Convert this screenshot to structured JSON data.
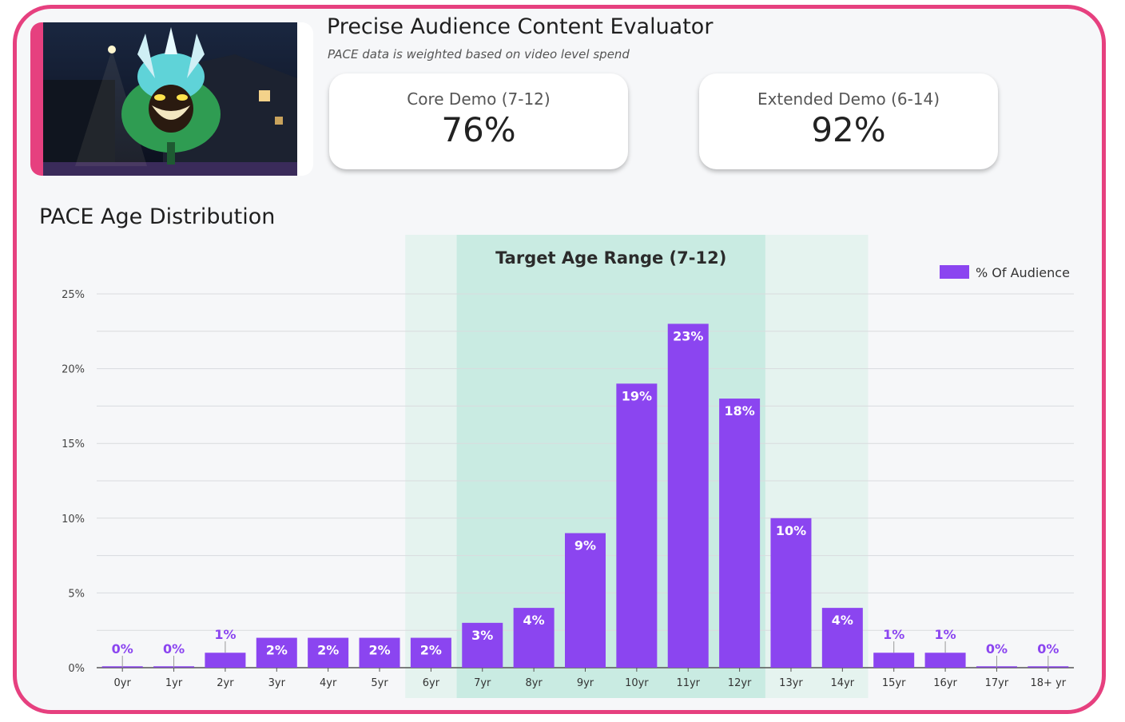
{
  "header": {
    "title": "Precise Audience Content Evaluator",
    "subtitle": "PACE data is weighted based on video level spend"
  },
  "kpis": {
    "core": {
      "label": "Core Demo (7-12)",
      "value": "76%"
    },
    "extended": {
      "label": "Extended Demo (6-14)",
      "value": "92%"
    }
  },
  "colors": {
    "accent": "#e6407f",
    "bar": "#8b45f0",
    "band_extended": "#e5f3ef",
    "band_core": "#c9ebe2"
  },
  "chart_data": {
    "type": "bar",
    "title": "PACE Age Distribution",
    "categories": [
      "0yr",
      "1yr",
      "2yr",
      "3yr",
      "4yr",
      "5yr",
      "6yr",
      "7yr",
      "8yr",
      "9yr",
      "10yr",
      "11yr",
      "12yr",
      "13yr",
      "14yr",
      "15yr",
      "16yr",
      "17yr",
      "18+ yr"
    ],
    "series": [
      {
        "name": "% Of Audience",
        "values": [
          0,
          0,
          1,
          2,
          2,
          2,
          2,
          3,
          4,
          9,
          19,
          23,
          18,
          10,
          4,
          1,
          1,
          0,
          0
        ]
      }
    ],
    "data_labels": [
      "0%",
      "0%",
      "1%",
      "2%",
      "2%",
      "2%",
      "2%",
      "3%",
      "4%",
      "9%",
      "19%",
      "23%",
      "18%",
      "10%",
      "4%",
      "1%",
      "1%",
      "0%",
      "0%"
    ],
    "ylim": [
      0,
      25
    ],
    "yticks": [
      0,
      5,
      10,
      15,
      20,
      25
    ],
    "ytick_labels": [
      "0%",
      "5%",
      "10%",
      "15%",
      "20%",
      "25%"
    ],
    "legend": {
      "label": "% Of Audience",
      "position": "top-right"
    },
    "highlight": {
      "label": "Target Age Range (7-12)",
      "core_range": [
        "7yr",
        "12yr"
      ],
      "extended_range": [
        "6yr",
        "14yr"
      ]
    },
    "xlabel": "",
    "ylabel": ""
  }
}
